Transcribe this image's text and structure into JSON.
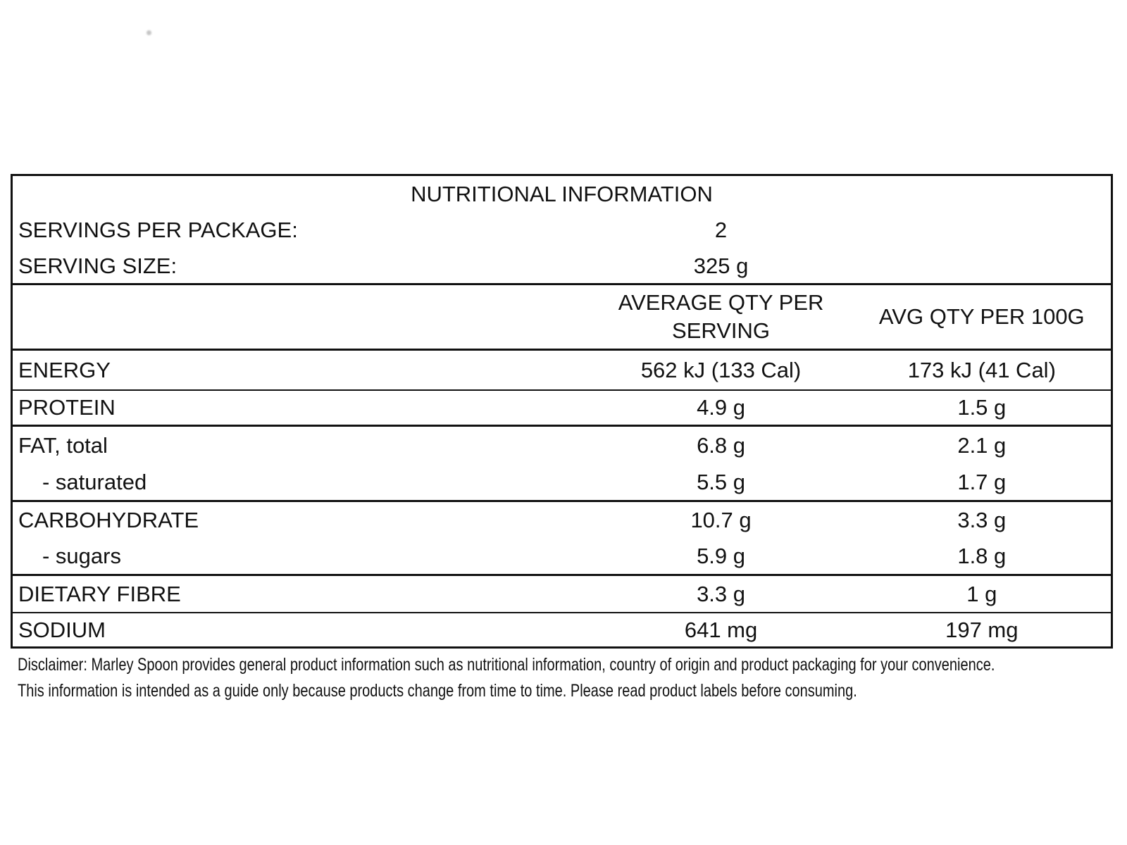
{
  "table": {
    "title": "NUTRITIONAL INFORMATION",
    "info_rows": [
      {
        "label": "SERVINGS PER PACKAGE:",
        "value": "2"
      },
      {
        "label": "SERVING SIZE:",
        "value": "325 g"
      }
    ],
    "columns": {
      "serving_header": "AVERAGE QTY PER SERVING",
      "per100g_header": "AVG QTY PER 100G"
    },
    "rows": [
      {
        "label": "ENERGY",
        "per_serving": "562 kJ (133 Cal)",
        "per_100g": "173 kJ (41 Cal)"
      },
      {
        "label": "PROTEIN",
        "per_serving": "4.9 g",
        "per_100g": "1.5 g"
      },
      {
        "label": "FAT, total",
        "per_serving": "6.8 g",
        "per_100g": "2.1 g"
      },
      {
        "label": "- saturated",
        "per_serving": "5.5 g",
        "per_100g": "1.7 g"
      },
      {
        "label": "CARBOHYDRATE",
        "per_serving": "10.7 g",
        "per_100g": "3.3 g"
      },
      {
        "label": "- sugars",
        "per_serving": "5.9 g",
        "per_100g": "1.8 g"
      },
      {
        "label": "DIETARY FIBRE",
        "per_serving": "3.3 g",
        "per_100g": "1 g"
      },
      {
        "label": "SODIUM",
        "per_serving": "641 mg",
        "per_100g": "197 mg"
      }
    ]
  },
  "disclaimer": {
    "line1": "Disclaimer: Marley Spoon provides general product information such as nutritional information, country of origin and product packaging for your convenience.",
    "line2": "This information is intended as a guide only because products change from time to time. Please read product labels before consuming."
  },
  "colors": {
    "text": "#111111",
    "border": "#111111",
    "background": "#ffffff"
  }
}
